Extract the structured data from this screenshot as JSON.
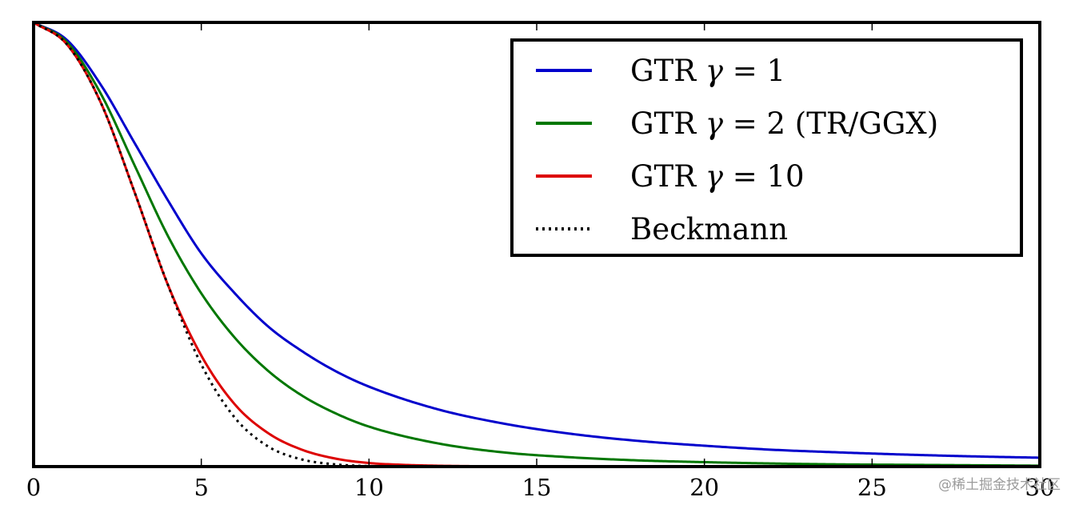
{
  "chart_data": {
    "type": "line",
    "title": "",
    "xlabel": "",
    "ylabel": "",
    "xlim": [
      0,
      30
    ],
    "ylim": [
      0,
      1
    ],
    "grid": false,
    "legend_position": "top-right",
    "x_ticks": [
      0,
      5,
      10,
      15,
      20,
      25,
      30
    ],
    "x_tick_labels": [
      "0",
      "5",
      "10",
      "15",
      "20",
      "25",
      "30"
    ],
    "series": [
      {
        "name": "GTR γ = 1",
        "legend_prefix": "GTR ",
        "legend_gamma": "γ",
        "legend_suffix": " = 1",
        "color": "#0000cc",
        "style": "solid",
        "x": [
          0,
          1,
          2,
          3,
          4,
          5,
          6,
          7,
          8,
          9,
          10,
          12,
          14,
          16,
          18,
          20,
          22,
          24,
          26,
          28,
          30
        ],
        "y": [
          1.0,
          0.96,
          0.86,
          0.73,
          0.6,
          0.48,
          0.39,
          0.315,
          0.26,
          0.215,
          0.18,
          0.13,
          0.097,
          0.074,
          0.058,
          0.047,
          0.038,
          0.032,
          0.027,
          0.023,
          0.02
        ]
      },
      {
        "name": "GTR γ = 2 (TR/GGX)",
        "legend_prefix": "GTR ",
        "legend_gamma": "γ",
        "legend_suffix": " = 2 (TR/GGX)",
        "color": "#007700",
        "style": "solid",
        "x": [
          0,
          1,
          2,
          3,
          4,
          5,
          6,
          7,
          8,
          9,
          10,
          12,
          14,
          16,
          18,
          20,
          22,
          24,
          26,
          28,
          30
        ],
        "y": [
          1.0,
          0.955,
          0.84,
          0.68,
          0.52,
          0.39,
          0.29,
          0.215,
          0.16,
          0.12,
          0.09,
          0.053,
          0.032,
          0.021,
          0.014,
          0.01,
          0.007,
          0.005,
          0.004,
          0.003,
          0.002
        ]
      },
      {
        "name": "GTR γ = 10",
        "legend_prefix": "GTR ",
        "legend_gamma": "γ",
        "legend_suffix": " = 10",
        "color": "#dd0000",
        "style": "solid",
        "x": [
          0,
          1,
          2,
          3,
          4,
          5,
          6,
          7,
          8,
          9,
          10,
          11,
          12,
          13,
          14,
          16,
          18,
          20,
          25,
          30
        ],
        "y": [
          1.0,
          0.95,
          0.82,
          0.62,
          0.41,
          0.25,
          0.14,
          0.075,
          0.038,
          0.018,
          0.008,
          0.004,
          0.002,
          0.001,
          0.0005,
          0,
          0,
          0,
          0,
          0
        ]
      },
      {
        "name": "Beckmann",
        "legend_prefix": "Beckmann",
        "legend_gamma": "",
        "legend_suffix": "",
        "color": "#000000",
        "style": "dotted",
        "x": [
          0,
          1,
          2,
          3,
          4,
          5,
          6,
          7,
          8,
          9,
          10,
          11,
          12,
          13,
          14
        ],
        "y": [
          1.0,
          0.95,
          0.82,
          0.62,
          0.41,
          0.23,
          0.11,
          0.045,
          0.016,
          0.005,
          0.001,
          0.0003,
          0,
          0,
          0
        ]
      }
    ]
  },
  "watermark": "@稀土掘金技术社区"
}
